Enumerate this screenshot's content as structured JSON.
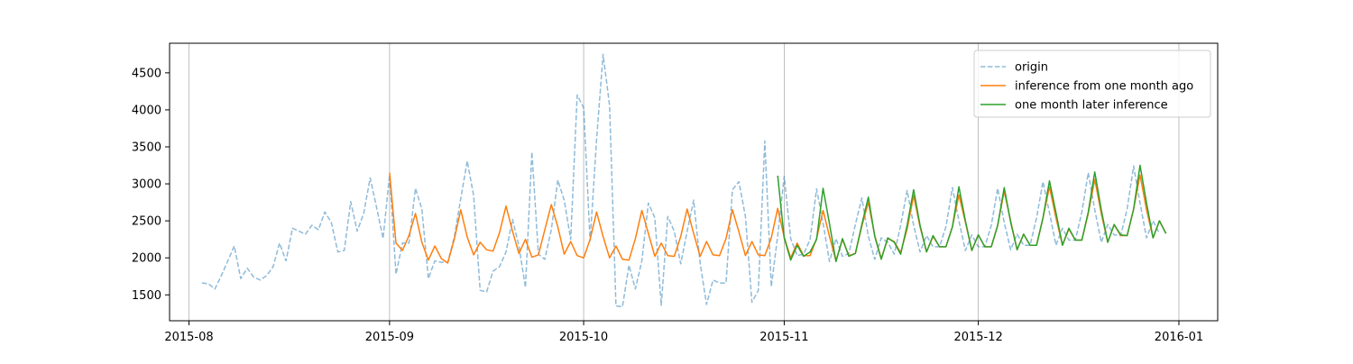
{
  "chart_data": {
    "type": "line",
    "title": "",
    "xlabel": "",
    "ylabel": "",
    "xlim": [
      "2015-07-29",
      "2016-01-07"
    ],
    "ylim": [
      1150,
      4900
    ],
    "x_ticks": [
      {
        "date": "2015-08-01",
        "label": "2015-08"
      },
      {
        "date": "2015-09-01",
        "label": "2015-09"
      },
      {
        "date": "2015-10-01",
        "label": "2015-10"
      },
      {
        "date": "2015-11-01",
        "label": "2015-11"
      },
      {
        "date": "2015-12-01",
        "label": "2015-12"
      },
      {
        "date": "2016-01-01",
        "label": "2016-01"
      }
    ],
    "y_ticks": [
      1500,
      2000,
      2500,
      3000,
      3500,
      4000,
      4500
    ],
    "grid": "vertical",
    "legend_position": "top-right",
    "series": [
      {
        "name": "origin",
        "color": "#1f77b4",
        "opacity": 0.5,
        "style": "dashed",
        "x_start": "2015-08-03",
        "values": [
          1660,
          1650,
          1580,
          1760,
          1960,
          2160,
          1720,
          1860,
          1740,
          1700,
          1760,
          1880,
          2200,
          1960,
          2400,
          2360,
          2320,
          2440,
          2380,
          2620,
          2480,
          2080,
          2100,
          2760,
          2360,
          2600,
          3080,
          2680,
          2260,
          3120,
          1780,
          2200,
          2200,
          2940,
          2660,
          1720,
          1960,
          1940,
          1940,
          2280,
          2800,
          3310,
          2840,
          1560,
          1540,
          1820,
          1880,
          2080,
          2520,
          2160,
          1600,
          3430,
          2050,
          1980,
          2380,
          3050,
          2780,
          2250,
          4200,
          4030,
          2230,
          3600,
          4750,
          4060,
          1350,
          1340,
          1900,
          1580,
          1960,
          2740,
          2540,
          1360,
          2560,
          2360,
          1920,
          2360,
          2780,
          1930,
          1370,
          1700,
          1660,
          1660,
          2920,
          3030,
          2560,
          1400,
          1560,
          3580,
          1610,
          2300,
          3100,
          2260,
          2030,
          2050,
          2250,
          2930,
          2470,
          1950,
          2260,
          2020,
          2060,
          2450,
          2810,
          2290,
          1980,
          2270,
          2210,
          2050,
          2440,
          2910,
          2440,
          2080,
          2300,
          2150,
          2150,
          2420,
          2950,
          2500,
          2100,
          2310,
          2150,
          2150,
          2440,
          2940,
          2480,
          2110,
          2320,
          2170,
          2170,
          2540,
          3030,
          2610,
          2170,
          2400,
          2240,
          2240,
          2620,
          3150,
          2650,
          2210,
          2450,
          2310,
          2300,
          2660,
          3240,
          2740,
          2270,
          2500,
          2330
        ]
      },
      {
        "name": "inference from one month ago",
        "color": "#ff7f0e",
        "opacity": 1,
        "style": "solid",
        "x_start": "2015-09-01",
        "values": [
          3150,
          2200,
          2100,
          2300,
          2600,
          2210,
          1970,
          2160,
          1990,
          1930,
          2250,
          2650,
          2280,
          2040,
          2210,
          2110,
          2090,
          2340,
          2700,
          2360,
          2060,
          2250,
          2010,
          2040,
          2380,
          2720,
          2420,
          2050,
          2220,
          2030,
          2000,
          2250,
          2620,
          2290,
          2000,
          2160,
          1980,
          1970,
          2260,
          2640,
          2330,
          2020,
          2200,
          2030,
          2020,
          2290,
          2660,
          2330,
          2020,
          2220,
          2040,
          2030,
          2260,
          2650,
          2350,
          2030,
          2220,
          2040,
          2030,
          2270,
          2670,
          2280,
          2000,
          2200,
          2030,
          2030,
          2260,
          2640,
          2290,
          1960,
          2250,
          2030,
          2060,
          2430,
          2750,
          2300,
          1990,
          2260,
          2220,
          2070,
          2390,
          2840,
          2420,
          2080,
          2290,
          2150,
          2150,
          2420,
          2850,
          2480,
          2100,
          2310,
          2150,
          2150,
          2440,
          2900,
          2500,
          2110,
          2320,
          2170,
          2170,
          2540,
          2960,
          2540,
          2170,
          2390,
          2240,
          2240,
          2600,
          3060,
          2600,
          2210,
          2450,
          2300,
          2300,
          2660,
          3120,
          2650,
          2270,
          2500,
          2330
        ]
      },
      {
        "name": "one month later inference",
        "color": "#2ca02c",
        "opacity": 1,
        "style": "solid",
        "x_start": "2015-10-31",
        "values": [
          3110,
          2270,
          1970,
          2170,
          2020,
          2080,
          2250,
          2940,
          2460,
          1950,
          2260,
          2020,
          2060,
          2450,
          2820,
          2290,
          1980,
          2270,
          2210,
          2050,
          2440,
          2920,
          2440,
          2080,
          2300,
          2150,
          2150,
          2420,
          2960,
          2500,
          2100,
          2310,
          2150,
          2150,
          2440,
          2950,
          2480,
          2110,
          2320,
          2170,
          2170,
          2540,
          3040,
          2610,
          2170,
          2400,
          2240,
          2240,
          2620,
          3160,
          2650,
          2210,
          2450,
          2310,
          2300,
          2660,
          3250,
          2740,
          2270,
          2500,
          2330
        ]
      }
    ]
  }
}
